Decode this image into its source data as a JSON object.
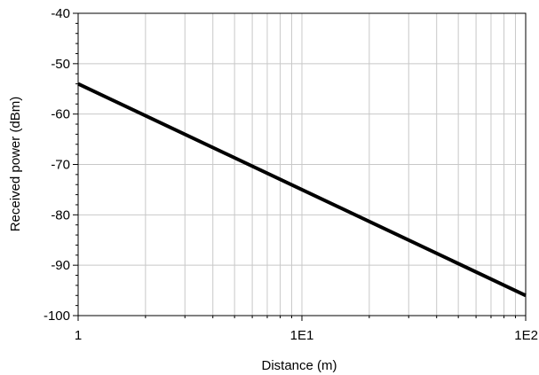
{
  "chart_data": {
    "type": "line",
    "title": "",
    "xlabel": "Distance (m)",
    "ylabel": "Received power (dBm)",
    "xscale": "log",
    "xlim": [
      1,
      100
    ],
    "ylim": [
      -100,
      -40
    ],
    "x_ticks": [
      {
        "value": 1,
        "label": "1"
      },
      {
        "value": 10,
        "label": "1E1"
      },
      {
        "value": 100,
        "label": "1E2"
      }
    ],
    "y_ticks": [
      {
        "value": -40,
        "label": "-40"
      },
      {
        "value": -50,
        "label": "-50"
      },
      {
        "value": -60,
        "label": "-60"
      },
      {
        "value": -70,
        "label": "-70"
      },
      {
        "value": -80,
        "label": "-80"
      },
      {
        "value": -90,
        "label": "-90"
      },
      {
        "value": -100,
        "label": "-100"
      }
    ],
    "grid": true,
    "legend": "none",
    "series": [
      {
        "color": "#000000",
        "x": [
          1,
          10,
          100
        ],
        "y": [
          -54,
          -75,
          -96
        ]
      }
    ]
  }
}
